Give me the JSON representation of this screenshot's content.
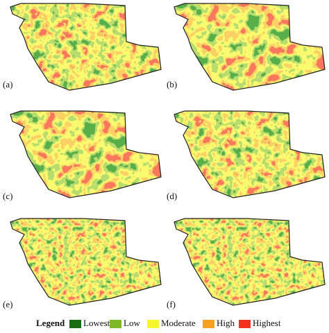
{
  "panels": [
    {
      "label": "(a)"
    },
    {
      "label": "(b)"
    },
    {
      "label": "(c)"
    },
    {
      "label": "(d)"
    },
    {
      "label": "(e)"
    },
    {
      "label": "(f)"
    }
  ],
  "legend": {
    "title": "Legend",
    "items": [
      {
        "label": "Lowest",
        "color": "#1a6e12"
      },
      {
        "label": "Low",
        "color": "#7cb82a"
      },
      {
        "label": "Moderate",
        "color": "#f6f62a"
      },
      {
        "label": "High",
        "color": "#f7a022"
      },
      {
        "label": "Highest",
        "color": "#f3301c"
      }
    ]
  }
}
